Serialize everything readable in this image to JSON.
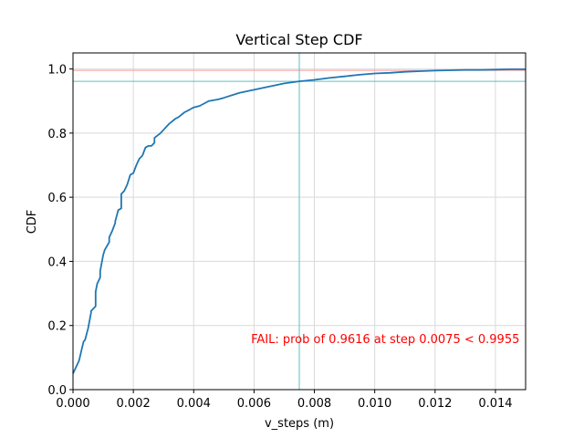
{
  "chart_data": {
    "type": "line",
    "title": "Vertical Step CDF",
    "xlabel": "v_steps (m)",
    "ylabel": "CDF",
    "xlim": [
      0,
      0.015
    ],
    "ylim": [
      0,
      1.05
    ],
    "grid": true,
    "x_ticks": [
      "0.000",
      "0.002",
      "0.004",
      "0.006",
      "0.008",
      "0.010",
      "0.012",
      "0.014"
    ],
    "x_tick_values": [
      0,
      0.002,
      0.004,
      0.006,
      0.008,
      0.01,
      0.012,
      0.014
    ],
    "y_ticks": [
      "0.0",
      "0.2",
      "0.4",
      "0.6",
      "0.8",
      "1.0"
    ],
    "y_tick_values": [
      0,
      0.2,
      0.4,
      0.6,
      0.8,
      1.0
    ],
    "series": [
      {
        "color": "#1f77b4",
        "x": [
          0,
          0.0002,
          0.0003,
          0.00035,
          0.0004,
          0.0005,
          0.0006,
          0.0006,
          0.0007,
          0.00075,
          0.00075,
          0.0008,
          0.0009,
          0.0009,
          0.001,
          0.00105,
          0.0012,
          0.0012,
          0.0013,
          0.0014,
          0.0014,
          0.0015,
          0.0016,
          0.0016,
          0.0017,
          0.0017,
          0.0018,
          0.0019,
          0.002,
          0.0021,
          0.0022,
          0.0023,
          0.0024,
          0.0025,
          0.0025,
          0.0026,
          0.0027,
          0.0027,
          0.0029,
          0.003,
          0.0031,
          0.0032,
          0.0034,
          0.0035,
          0.0037,
          0.0038,
          0.0039,
          0.004,
          0.0042,
          0.0044,
          0.0045,
          0.0048,
          0.005,
          0.0055,
          0.006,
          0.0065,
          0.007,
          0.0075,
          0.008,
          0.0085,
          0.009,
          0.0095,
          0.01,
          0.0105,
          0.011,
          0.0115,
          0.012,
          0.0125,
          0.013,
          0.0135,
          0.014,
          0.0145,
          0.015
        ],
        "y": [
          0.05,
          0.09,
          0.13,
          0.15,
          0.155,
          0.19,
          0.24,
          0.245,
          0.255,
          0.26,
          0.305,
          0.33,
          0.35,
          0.37,
          0.42,
          0.435,
          0.46,
          0.475,
          0.495,
          0.52,
          0.525,
          0.56,
          0.565,
          0.61,
          0.62,
          0.62,
          0.64,
          0.67,
          0.675,
          0.7,
          0.72,
          0.73,
          0.755,
          0.76,
          0.76,
          0.76,
          0.77,
          0.785,
          0.8,
          0.81,
          0.82,
          0.83,
          0.845,
          0.85,
          0.865,
          0.87,
          0.875,
          0.88,
          0.885,
          0.895,
          0.9,
          0.905,
          0.91,
          0.925,
          0.935,
          0.945,
          0.955,
          0.9616,
          0.966,
          0.972,
          0.977,
          0.982,
          0.986,
          0.988,
          0.991,
          0.993,
          0.995,
          0.996,
          0.997,
          0.997,
          0.998,
          0.999,
          0.999
        ]
      }
    ],
    "reference_lines": [
      {
        "orientation": "horizontal",
        "value": 0.9955,
        "color": "#ff9999"
      },
      {
        "orientation": "horizontal",
        "value": 0.9616,
        "color": "#5bc0c0"
      },
      {
        "orientation": "vertical",
        "value": 0.0075,
        "color": "#5bc0c0"
      }
    ],
    "annotations": [
      {
        "text": "FAIL: prob of 0.9616 at step 0.0075 < 0.9955",
        "color": "#ff0000",
        "x": 0.0148,
        "y": 0.16
      }
    ]
  }
}
